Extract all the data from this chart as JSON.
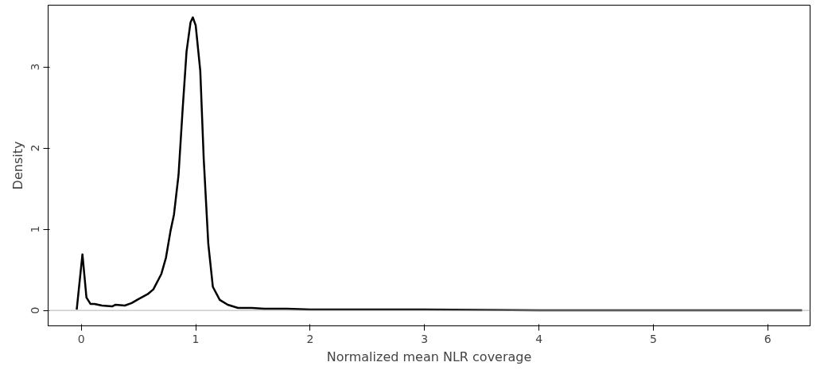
{
  "chart_data": {
    "type": "line",
    "xlabel": "Normalized mean NLR coverage",
    "ylabel": "Density",
    "x": [
      -0.04,
      0.01,
      0.045,
      0.08,
      0.115,
      0.18,
      0.27,
      0.3,
      0.38,
      0.44,
      0.5,
      0.58,
      0.63,
      0.7,
      0.74,
      0.78,
      0.81,
      0.85,
      0.885,
      0.92,
      0.955,
      0.975,
      1.0,
      1.04,
      1.07,
      1.11,
      1.15,
      1.21,
      1.28,
      1.37,
      1.49,
      1.6,
      1.8,
      2.0,
      2.5,
      3.0,
      4.0,
      5.0,
      6.3
    ],
    "series": [
      {
        "color": "#000000",
        "values": [
          0.01,
          0.69,
          0.16,
          0.08,
          0.08,
          0.06,
          0.05,
          0.07,
          0.06,
          0.09,
          0.14,
          0.2,
          0.26,
          0.45,
          0.65,
          0.98,
          1.18,
          1.67,
          2.46,
          3.19,
          3.55,
          3.61,
          3.51,
          2.95,
          1.87,
          0.82,
          0.29,
          0.13,
          0.07,
          0.03,
          0.03,
          0.02,
          0.02,
          0.01,
          0.01,
          0.01,
          0.0,
          0.0,
          0.0
        ]
      }
    ],
    "xlim": [
      -0.29,
      6.37
    ],
    "ylim": [
      -0.19,
      3.76
    ],
    "xticks": [
      0,
      1,
      2,
      3,
      4,
      5,
      6
    ],
    "yticks": [
      0,
      1,
      2,
      3
    ],
    "ref_lines": [
      {
        "axis": "y",
        "value": 0,
        "color": "#b3b3b3"
      }
    ],
    "grid": false,
    "marker": "none",
    "line_style": "solid"
  }
}
